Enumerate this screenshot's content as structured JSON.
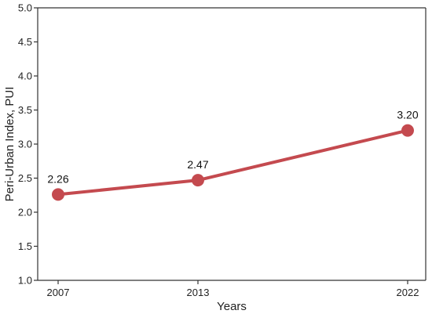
{
  "chart_data": {
    "type": "line",
    "title": "",
    "xlabel": "Years",
    "ylabel": "Peri-Urban Index, PUI",
    "categories": [
      "2007",
      "2013",
      "2022"
    ],
    "x": [
      2007,
      2013,
      2022
    ],
    "series": [
      {
        "values": [
          2.26,
          2.47,
          3.2
        ],
        "labels": [
          "2.26",
          "2.47",
          "3.20"
        ]
      }
    ],
    "ylim": [
      1.0,
      5.0
    ],
    "yticks": [
      "1.0",
      "1.5",
      "2.0",
      "2.5",
      "3.0",
      "3.5",
      "4.0",
      "4.5",
      "5.0"
    ],
    "grid": false,
    "colors": {
      "line": "#c44a4f",
      "marker": "#c44a4f",
      "axis": "#333333"
    }
  }
}
